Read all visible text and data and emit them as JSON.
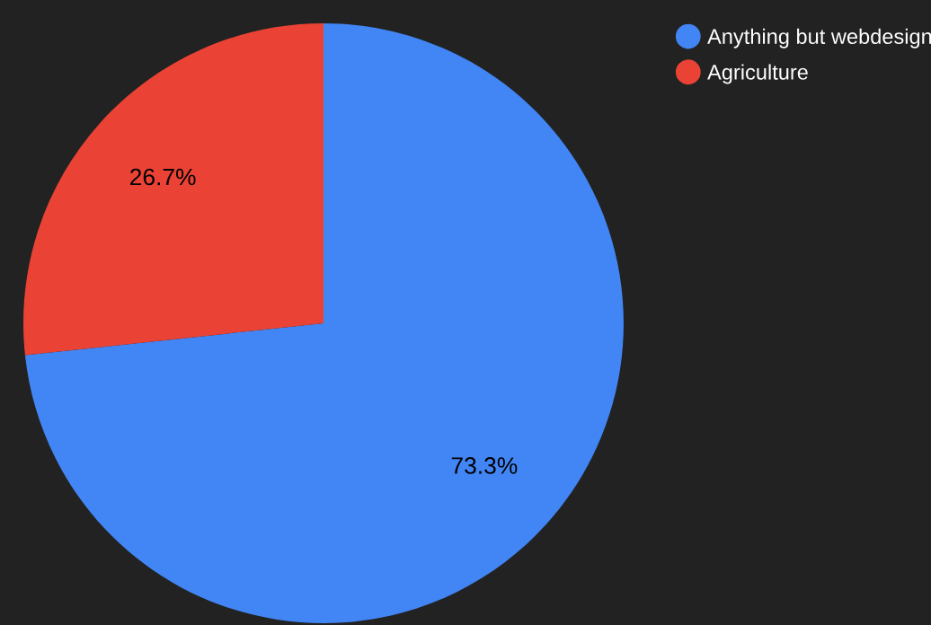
{
  "chart_data": {
    "type": "pie",
    "categories": [
      "Anything but webdesign",
      "Agriculture"
    ],
    "values": [
      73.3,
      26.7
    ],
    "colors": [
      "#4285f4",
      "#ea4335"
    ],
    "value_labels": [
      "73.3%",
      "26.7%"
    ],
    "legend": "top right"
  }
}
